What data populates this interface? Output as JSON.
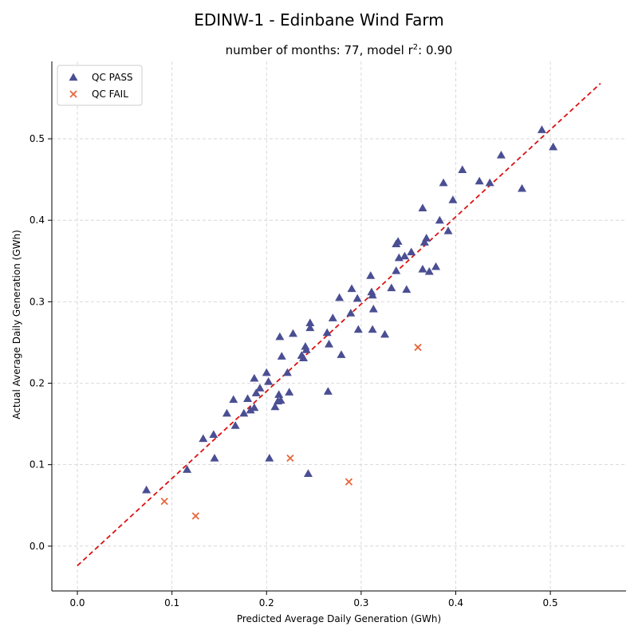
{
  "chart_data": {
    "type": "scatter",
    "title": "EDINW-1 - Edinbane Wind Farm",
    "subtitle": "number of months: 77, model r",
    "subtitle_sup": "2",
    "subtitle_tail": ": 0.90",
    "xlabel": "Predicted Average Daily Generation (GWh)",
    "ylabel": "Actual Average Daily Generation (GWh)",
    "xlim": [
      -0.027,
      0.58
    ],
    "ylim": [
      -0.055,
      0.595
    ],
    "xticks": [
      "0.0",
      "0.1",
      "0.2",
      "0.3",
      "0.4",
      "0.5"
    ],
    "yticks": [
      "0.0",
      "0.1",
      "0.2",
      "0.3",
      "0.4",
      "0.5"
    ],
    "grid": true,
    "legend_position": "top-left",
    "fit_line": {
      "x": [
        0.0,
        0.553
      ],
      "y": [
        -0.024,
        0.568
      ],
      "color": "#dd1111"
    },
    "series": [
      {
        "name": "QC PASS",
        "marker": "triangle",
        "color": "#4a4e92",
        "points": [
          [
            0.073,
            0.069
          ],
          [
            0.116,
            0.094
          ],
          [
            0.133,
            0.132
          ],
          [
            0.144,
            0.137
          ],
          [
            0.145,
            0.108
          ],
          [
            0.158,
            0.163
          ],
          [
            0.165,
            0.18
          ],
          [
            0.167,
            0.148
          ],
          [
            0.176,
            0.163
          ],
          [
            0.18,
            0.181
          ],
          [
            0.183,
            0.167
          ],
          [
            0.187,
            0.17
          ],
          [
            0.187,
            0.206
          ],
          [
            0.189,
            0.188
          ],
          [
            0.193,
            0.194
          ],
          [
            0.2,
            0.213
          ],
          [
            0.202,
            0.202
          ],
          [
            0.203,
            0.108
          ],
          [
            0.209,
            0.171
          ],
          [
            0.212,
            0.178
          ],
          [
            0.213,
            0.186
          ],
          [
            0.214,
            0.257
          ],
          [
            0.215,
            0.179
          ],
          [
            0.216,
            0.233
          ],
          [
            0.222,
            0.213
          ],
          [
            0.224,
            0.189
          ],
          [
            0.228,
            0.261
          ],
          [
            0.237,
            0.234
          ],
          [
            0.239,
            0.231
          ],
          [
            0.241,
            0.245
          ],
          [
            0.242,
            0.241
          ],
          [
            0.244,
            0.089
          ],
          [
            0.246,
            0.274
          ],
          [
            0.246,
            0.268
          ],
          [
            0.264,
            0.262
          ],
          [
            0.265,
            0.19
          ],
          [
            0.266,
            0.248
          ],
          [
            0.27,
            0.28
          ],
          [
            0.277,
            0.305
          ],
          [
            0.279,
            0.235
          ],
          [
            0.289,
            0.286
          ],
          [
            0.29,
            0.316
          ],
          [
            0.296,
            0.304
          ],
          [
            0.297,
            0.266
          ],
          [
            0.31,
            0.332
          ],
          [
            0.311,
            0.312
          ],
          [
            0.312,
            0.308
          ],
          [
            0.312,
            0.266
          ],
          [
            0.313,
            0.291
          ],
          [
            0.325,
            0.26
          ],
          [
            0.332,
            0.317
          ],
          [
            0.337,
            0.338
          ],
          [
            0.337,
            0.371
          ],
          [
            0.339,
            0.374
          ],
          [
            0.34,
            0.354
          ],
          [
            0.346,
            0.356
          ],
          [
            0.348,
            0.315
          ],
          [
            0.353,
            0.361
          ],
          [
            0.365,
            0.415
          ],
          [
            0.365,
            0.34
          ],
          [
            0.367,
            0.373
          ],
          [
            0.369,
            0.378
          ],
          [
            0.372,
            0.337
          ],
          [
            0.379,
            0.343
          ],
          [
            0.383,
            0.4
          ],
          [
            0.387,
            0.446
          ],
          [
            0.392,
            0.387
          ],
          [
            0.397,
            0.425
          ],
          [
            0.407,
            0.462
          ],
          [
            0.425,
            0.448
          ],
          [
            0.436,
            0.446
          ],
          [
            0.448,
            0.48
          ],
          [
            0.47,
            0.439
          ],
          [
            0.491,
            0.511
          ],
          [
            0.503,
            0.49
          ]
        ]
      },
      {
        "name": "QC FAIL",
        "marker": "x",
        "color": "#e8663a",
        "points": [
          [
            0.092,
            0.055
          ],
          [
            0.125,
            0.037
          ],
          [
            0.225,
            0.108
          ],
          [
            0.287,
            0.079
          ],
          [
            0.36,
            0.244
          ]
        ]
      }
    ]
  }
}
